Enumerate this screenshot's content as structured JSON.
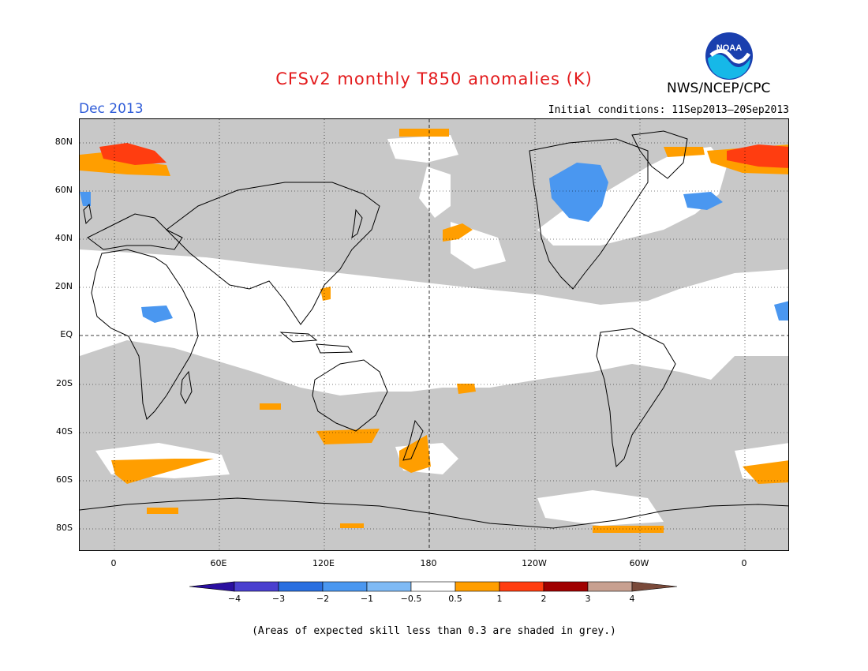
{
  "title": "CFSv2 monthly T850 anomalies (K)",
  "month": "Dec 2013",
  "initial_conditions": "Initial conditions: 11Sep2013–20Sep2013",
  "org": "NWS/NCEP/CPC",
  "logo_text": "NOAA",
  "lat_labels": [
    "80N",
    "60N",
    "40N",
    "20N",
    "EQ",
    "20S",
    "40S",
    "60S",
    "80S"
  ],
  "lon_labels": [
    "0",
    "60E",
    "120E",
    "180",
    "120W",
    "60W",
    "0"
  ],
  "colorbar": {
    "labels": [
      "−4",
      "−3",
      "−2",
      "−1",
      "−0.5",
      "0.5",
      "1",
      "2",
      "3",
      "4"
    ],
    "colors": [
      "#2a0fa0",
      "#4a3fcf",
      "#2a6fe0",
      "#4a97f0",
      "#7fbaf5",
      "#ffffff",
      "#ff9e00",
      "#ff3d10",
      "#a00000",
      "#c8a090",
      "#7a4a3a"
    ]
  },
  "colors": {
    "skill_grey": "#c8c8c8",
    "neutral": "#ffffff",
    "warm_1": "#ff9e00",
    "warm_2": "#ff3d10",
    "cool_1": "#4a97f0"
  },
  "note": "(Areas of expected skill less than 0.3 are shaded in grey.)"
}
